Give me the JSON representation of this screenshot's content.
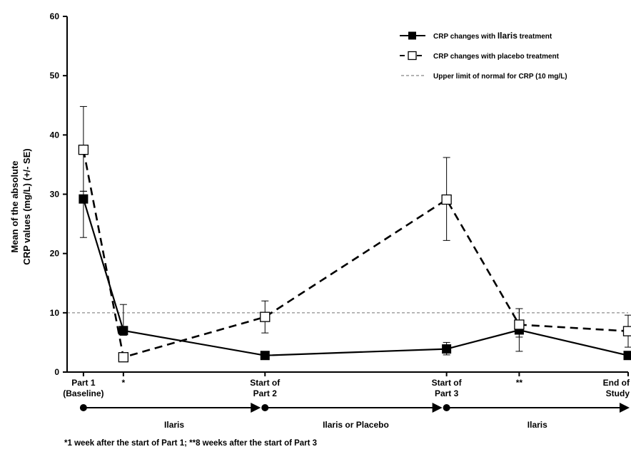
{
  "chart_data": {
    "type": "line",
    "title": "",
    "ylabel": [
      "Mean of the absolute",
      "CRP values (mg/L) (+/- SE)"
    ],
    "xlabel": "",
    "ylim": [
      0,
      60
    ],
    "yticks": [
      0,
      10,
      20,
      30,
      40,
      50,
      60
    ],
    "x": [
      0,
      0.22,
      1,
      2,
      2.4,
      3
    ],
    "x_ticks": [
      {
        "x": 0,
        "lines": [
          "Part 1",
          "(Baseline)"
        ]
      },
      {
        "x": 0.22,
        "lines": [
          "*"
        ]
      },
      {
        "x": 1,
        "lines": [
          "Start of",
          "Part 2"
        ]
      },
      {
        "x": 2,
        "lines": [
          "Start of",
          "Part 3"
        ]
      },
      {
        "x": 2.4,
        "lines": [
          "**"
        ]
      },
      {
        "x": 3,
        "lines": [
          "End of",
          "Study"
        ]
      }
    ],
    "series": [
      {
        "name": "CRP changes with Ilaris treatment",
        "name_parts": [
          "CRP changes with ",
          "Ilaris",
          " treatment"
        ],
        "marker": "filled-square",
        "line": "solid",
        "color": "#000000",
        "points": [
          {
            "x": 0,
            "y": 29.2,
            "se_low": 22.7,
            "se_high": 30.5
          },
          {
            "x": 0.22,
            "y": 7.0,
            "se_low": 6.2,
            "se_high": 11.4
          },
          {
            "x": 1,
            "y": 2.8,
            "se_low": 2.5,
            "se_high": 3.1
          },
          {
            "x": 2,
            "y": 3.9,
            "se_low": 2.9,
            "se_high": 5.0
          },
          {
            "x": 2.4,
            "y": 7.1,
            "se_low": 3.5,
            "se_high": 10.7
          },
          {
            "x": 3,
            "y": 2.8,
            "se_low": 2.5,
            "se_high": 3.1
          }
        ]
      },
      {
        "name": "CRP changes with placebo treatment",
        "marker": "open-square",
        "line": "dashed",
        "color": "#000000",
        "points": [
          {
            "x": 0,
            "y": 37.5,
            "se_low": 30.5,
            "se_high": 44.8
          },
          {
            "x": 0.22,
            "y": 2.5,
            "se_low": 2.2,
            "se_high": 2.8
          },
          {
            "x": 1,
            "y": 9.3,
            "se_low": 6.6,
            "se_high": 12.0
          },
          {
            "x": 2,
            "y": 29.1,
            "se_low": 22.2,
            "se_high": 36.2
          },
          {
            "x": 2.4,
            "y": 8.0,
            "se_low": 5.9,
            "se_high": 10.7
          },
          {
            "x": 3,
            "y": 6.9,
            "se_low": 4.2,
            "se_high": 9.6
          }
        ]
      }
    ],
    "reference_line": {
      "name": "Upper limit of normal for CRP (10 mg/L)",
      "y": 10,
      "color": "#999999",
      "style": "dashed"
    },
    "legend_position": "top-right",
    "phases": [
      {
        "label": "Ilaris",
        "from": 0,
        "to": 1
      },
      {
        "label": "Ilaris or Placebo",
        "from": 1,
        "to": 2
      },
      {
        "label": "Ilaris",
        "from": 2,
        "to": 3
      }
    ],
    "footnote": "*1 week after the start of Part 1; **8 weeks after the start of Part 3"
  }
}
